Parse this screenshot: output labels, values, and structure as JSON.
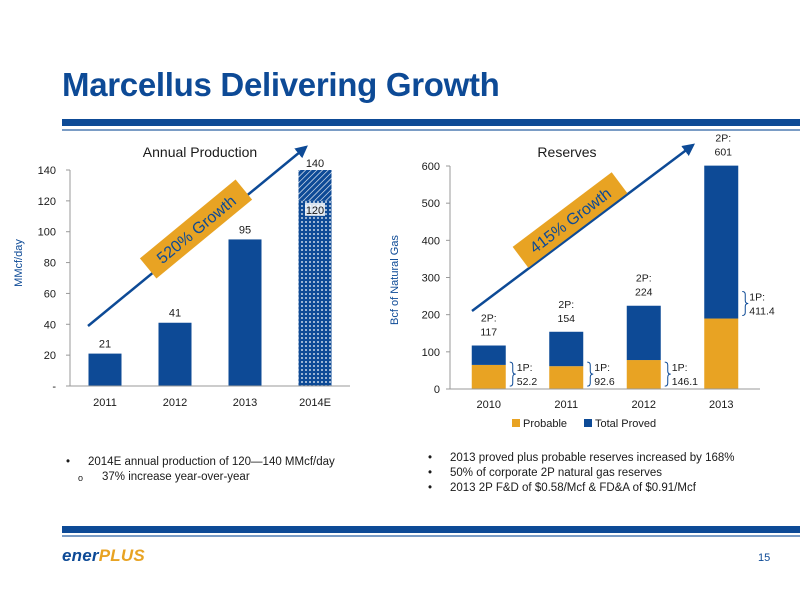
{
  "slide": {
    "title": "Marcellus Delivering Growth",
    "page_number": "15",
    "logo": {
      "part1": "ener",
      "part2": "PLUS"
    }
  },
  "colors": {
    "navy": "#0d4a96",
    "gold": "#e8a323"
  },
  "chart_data": [
    {
      "type": "bar",
      "title": "Annual Production",
      "ylabel": "MMcf/day",
      "categories": [
        "2011",
        "2012",
        "2013",
        "2014E"
      ],
      "values": [
        21,
        41,
        95,
        120
      ],
      "value_labels": [
        "21",
        "41",
        "95",
        "120"
      ],
      "range_top": 140,
      "range_top_label": "140",
      "ylim": [
        0,
        140
      ],
      "yticks": [
        0,
        20,
        40,
        60,
        80,
        100,
        120,
        140
      ],
      "ytick_labels": [
        "-",
        "20",
        "40",
        "60",
        "80",
        "100",
        "120",
        "140"
      ],
      "growth_label": "520% Growth"
    },
    {
      "type": "bar",
      "stacked": true,
      "title": "Reserves",
      "ylabel": "Bcf of Natural Gas",
      "categories": [
        "2010",
        "2011",
        "2012",
        "2013"
      ],
      "series": [
        {
          "name": "Probable",
          "color": "#e8a323",
          "values": [
            64.8,
            61.4,
            77.9,
            189.6
          ]
        },
        {
          "name": "Total Proved",
          "color": "#0d4a96",
          "values": [
            52.2,
            92.6,
            146.1,
            411.4
          ]
        }
      ],
      "totals": [
        117,
        154,
        224,
        601
      ],
      "top_labels": [
        [
          "2P:",
          "117"
        ],
        [
          "2P:",
          "154"
        ],
        [
          "2P:",
          "224"
        ],
        [
          "2P:",
          "601"
        ]
      ],
      "side_labels": [
        [
          "1P:",
          "52.2"
        ],
        [
          "1P:",
          "92.6"
        ],
        [
          "1P:",
          "146.1"
        ],
        [
          "1P:",
          "411.4"
        ]
      ],
      "ylim": [
        0,
        600
      ],
      "yticks": [
        0,
        100,
        200,
        300,
        400,
        500,
        600
      ],
      "ytick_labels": [
        "0",
        "100",
        "200",
        "300",
        "400",
        "500",
        "600"
      ],
      "legend": [
        "Probable",
        "Total Proved"
      ],
      "legend_position": "bottom",
      "growth_label": "415% Growth"
    }
  ],
  "bullets_left": {
    "items": [
      "2014E annual production of 120—140 MMcf/day"
    ],
    "sub_items": [
      "37% increase year-over-year"
    ]
  },
  "bullets_right": {
    "items": [
      "2013 proved plus probable reserves increased by 168%",
      "50% of corporate 2P natural gas reserves",
      "2013 2P F&D of $0.58/Mcf & FD&A of $0.91/Mcf"
    ]
  }
}
